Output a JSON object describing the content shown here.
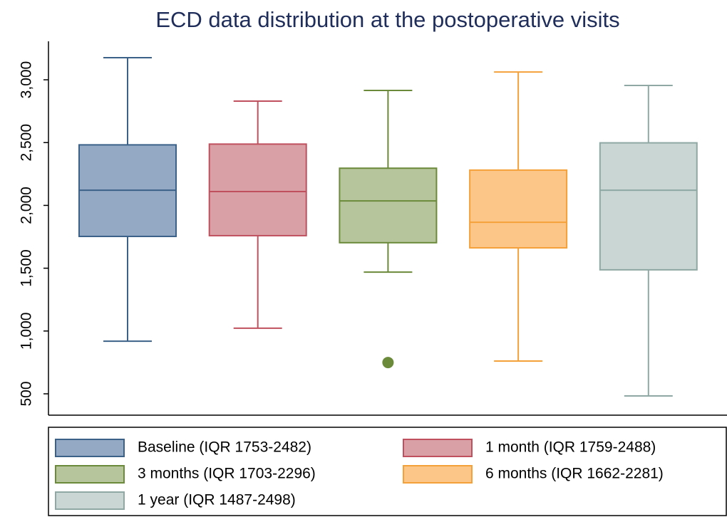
{
  "chart_data": {
    "type": "box",
    "title": "ECD data distribution at the postoperative visits",
    "ylim": [
      330,
      3295
    ],
    "yticks": [
      500,
      {
        "value": 1000,
        "label": "1,000"
      },
      {
        "value": 1500,
        "label": "1,500"
      },
      {
        "value": 2000,
        "label": "2,000"
      },
      {
        "value": 2500,
        "label": "2,500"
      },
      {
        "value": 3000,
        "label": "3,000"
      }
    ],
    "series": [
      {
        "name": "Baseline (IQR 1753-2482)",
        "color": "#94a9c4",
        "stroke": "#3b6189",
        "low": 919,
        "q1": 1753,
        "median": 2121,
        "q3": 2482,
        "high": 3176
      },
      {
        "name": "1 month (IQR 1759-2488)",
        "color": "#d9a0a6",
        "stroke": "#c0505e",
        "low": 1022,
        "q1": 1759,
        "median": 2110,
        "q3": 2488,
        "high": 2830
      },
      {
        "name": "3 months (IQR 1703-2296)",
        "color": "#b7c59c",
        "stroke": "#6b8a3a",
        "low": 1469,
        "q1": 1703,
        "median": 2036,
        "q3": 2296,
        "high": 2915,
        "outliers": [
          749
        ]
      },
      {
        "name": "6 months (IQR 1662-2281)",
        "color": "#fdc689",
        "stroke": "#f5a13a",
        "low": 761,
        "q1": 1662,
        "median": 1866,
        "q3": 2281,
        "high": 3062
      },
      {
        "name": "1 year (IQR 1487-2498)",
        "color": "#c9d6d3",
        "stroke": "#8fa8a3",
        "low": 483,
        "q1": 1487,
        "median": 2121,
        "q3": 2498,
        "high": 2955
      }
    ]
  }
}
